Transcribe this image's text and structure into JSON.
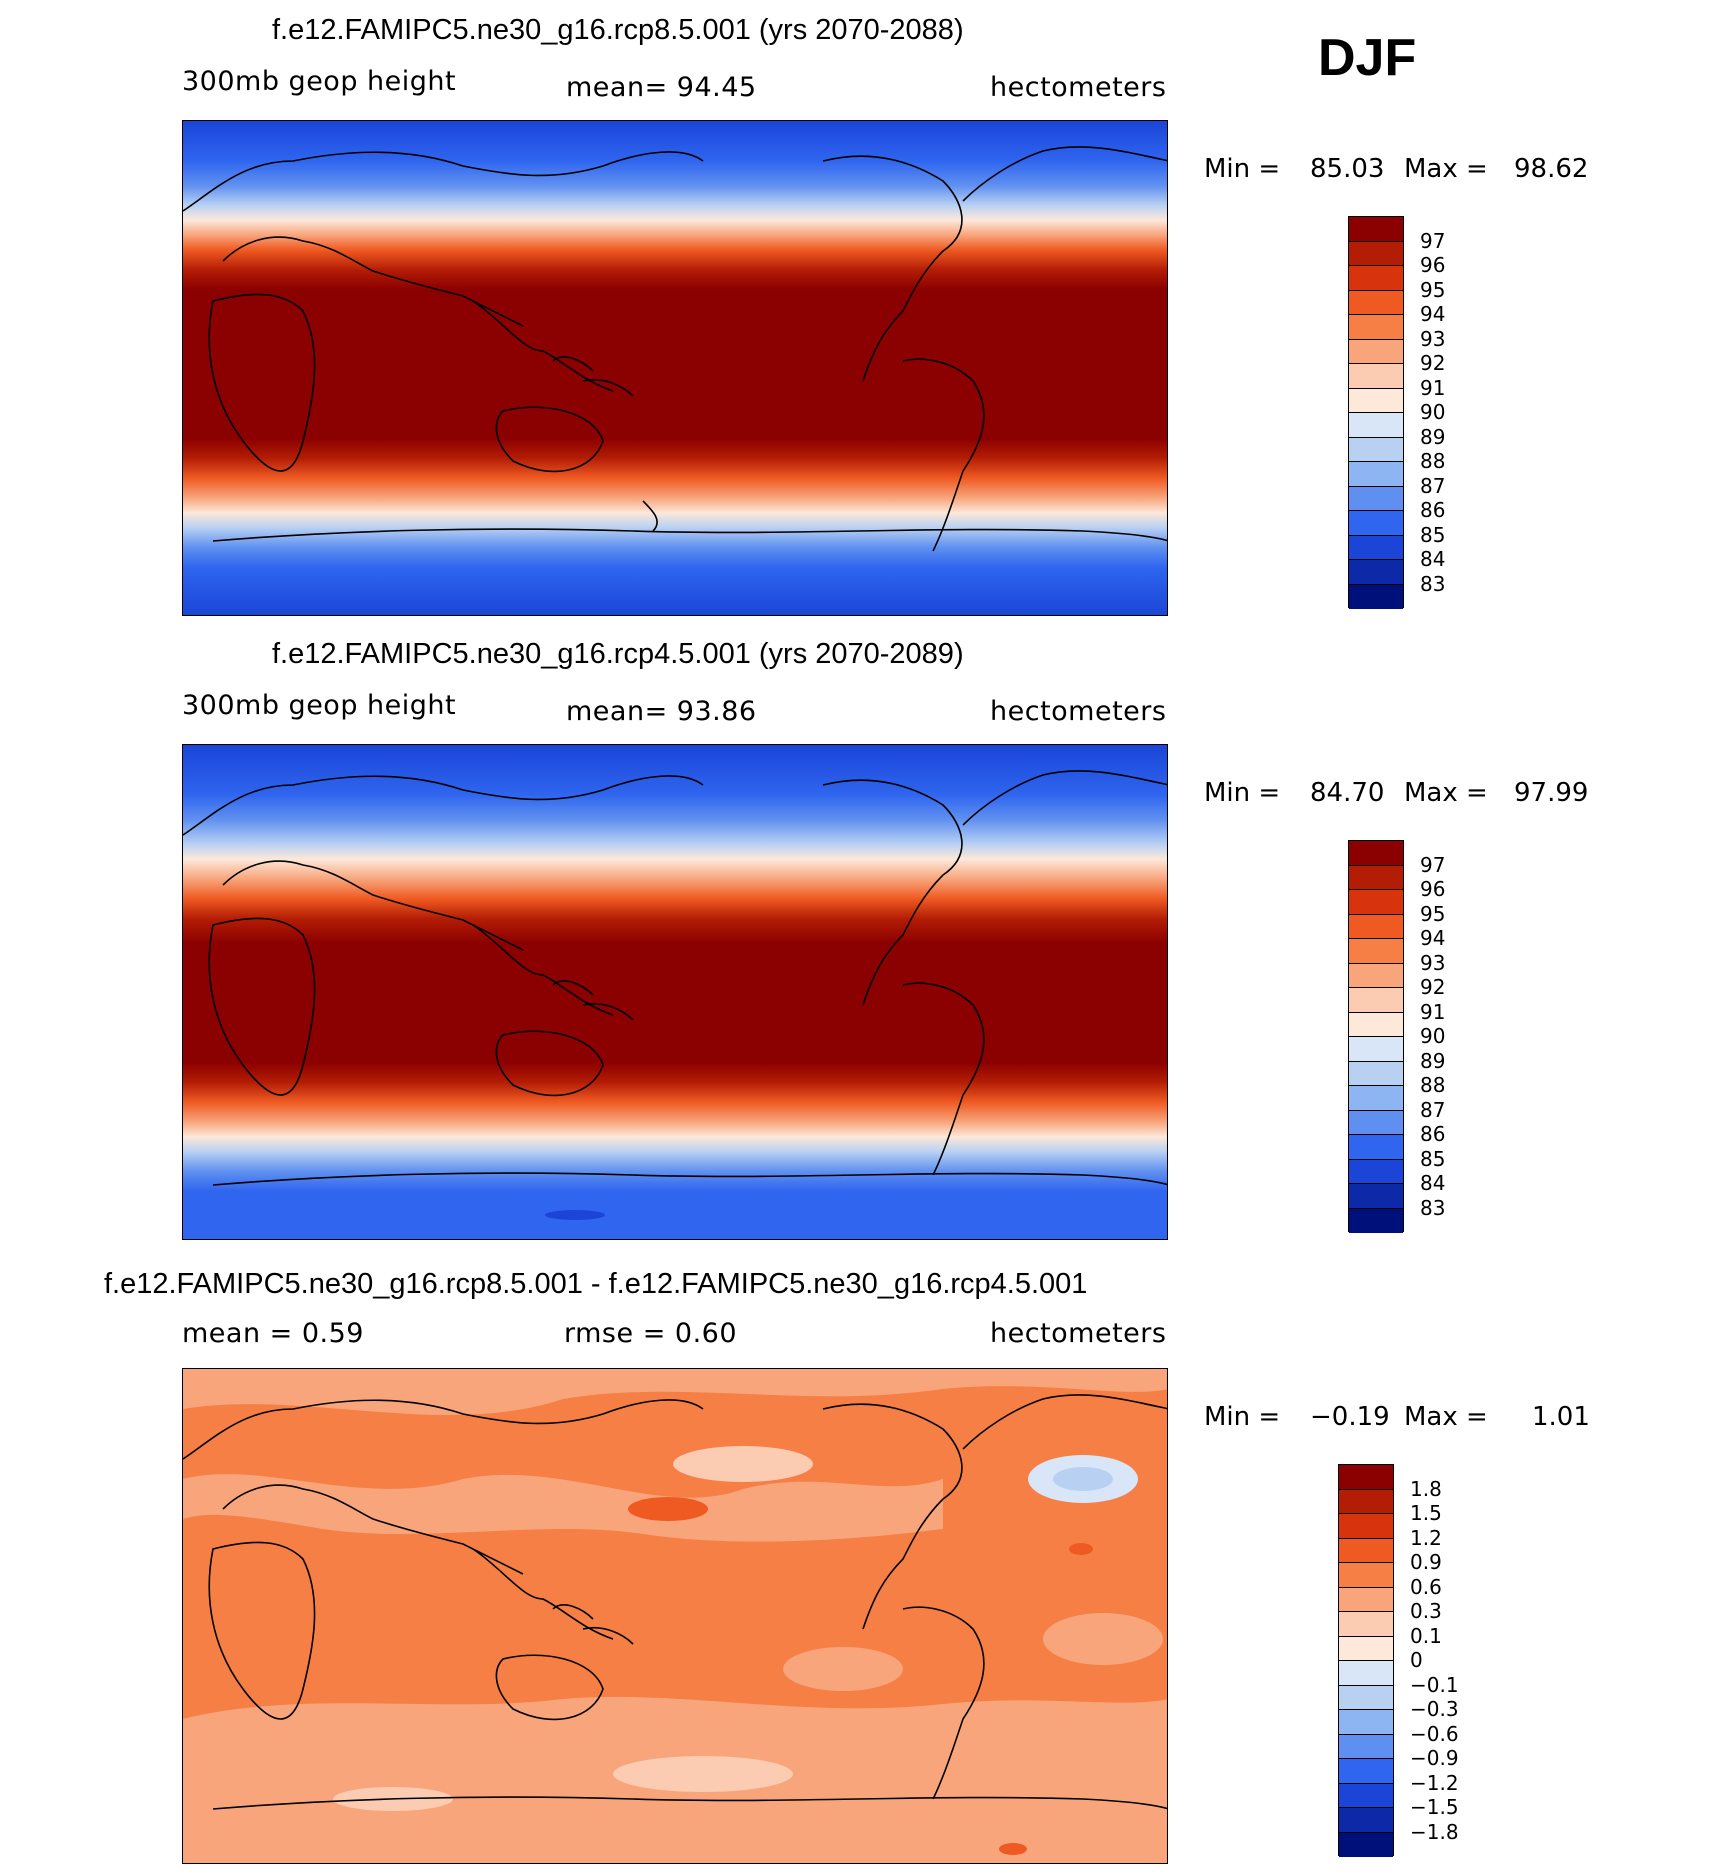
{
  "season": "DJF",
  "panels": [
    {
      "title": "f.e12.FAMIPC5.ne30_g16.rcp8.5.001 (yrs 2070-2088)",
      "left_label": "300mb geop height",
      "center_label": "mean=  94.45",
      "right_label": "hectometers",
      "min_label": "Min =",
      "min_value": "85.03",
      "max_label": "Max =",
      "max_value": "98.62",
      "colorbar_labels": [
        "97",
        "96",
        "95",
        "94",
        "93",
        "92",
        "91",
        "90",
        "89",
        "88",
        "87",
        "86",
        "85",
        "84",
        "83"
      ]
    },
    {
      "title": "f.e12.FAMIPC5.ne30_g16.rcp4.5.001 (yrs 2070-2089)",
      "left_label": "300mb geop height",
      "center_label": "mean=  93.86",
      "right_label": "hectometers",
      "min_label": "Min =",
      "min_value": "84.70",
      "max_label": "Max =",
      "max_value": "97.99",
      "colorbar_labels": [
        "97",
        "96",
        "95",
        "94",
        "93",
        "92",
        "91",
        "90",
        "89",
        "88",
        "87",
        "86",
        "85",
        "84",
        "83"
      ]
    },
    {
      "title": "f.e12.FAMIPC5.ne30_g16.rcp8.5.001 - f.e12.FAMIPC5.ne30_g16.rcp4.5.001",
      "left_label": "mean =    0.59",
      "center_label": "rmse =    0.60",
      "right_label": "hectometers",
      "min_label": "Min =",
      "min_value": "−0.19",
      "max_label": "Max =",
      "max_value": "1.01",
      "colorbar_labels": [
        "1.8",
        "1.5",
        "1.2",
        "0.9",
        "0.6",
        "0.3",
        "0.1",
        "0",
        "−0.1",
        "−0.3",
        "−0.6",
        "−0.9",
        "−1.2",
        "−1.5",
        "−1.8"
      ]
    }
  ],
  "colors": {
    "height_scale": [
      "#8b0000",
      "#b41d05",
      "#d7330d",
      "#ef5a22",
      "#f57f45",
      "#f8a57c",
      "#fbcbb2",
      "#fde8da",
      "#d8e6f7",
      "#b8d1f3",
      "#8db5f1",
      "#5f90f0",
      "#2f65ef",
      "#1a45d6",
      "#0c2aa8",
      "#00107a"
    ],
    "diff_scale": [
      "#8b0000",
      "#b41d05",
      "#d7330d",
      "#ef5a22",
      "#f57f45",
      "#f8a57c",
      "#fbcbb2",
      "#fde8da",
      "#d8e6f7",
      "#b8d1f3",
      "#8db5f1",
      "#5f90f0",
      "#2f65ef",
      "#1a45d6",
      "#0c2aa8",
      "#00107a"
    ],
    "diff_background": "#f59364"
  }
}
